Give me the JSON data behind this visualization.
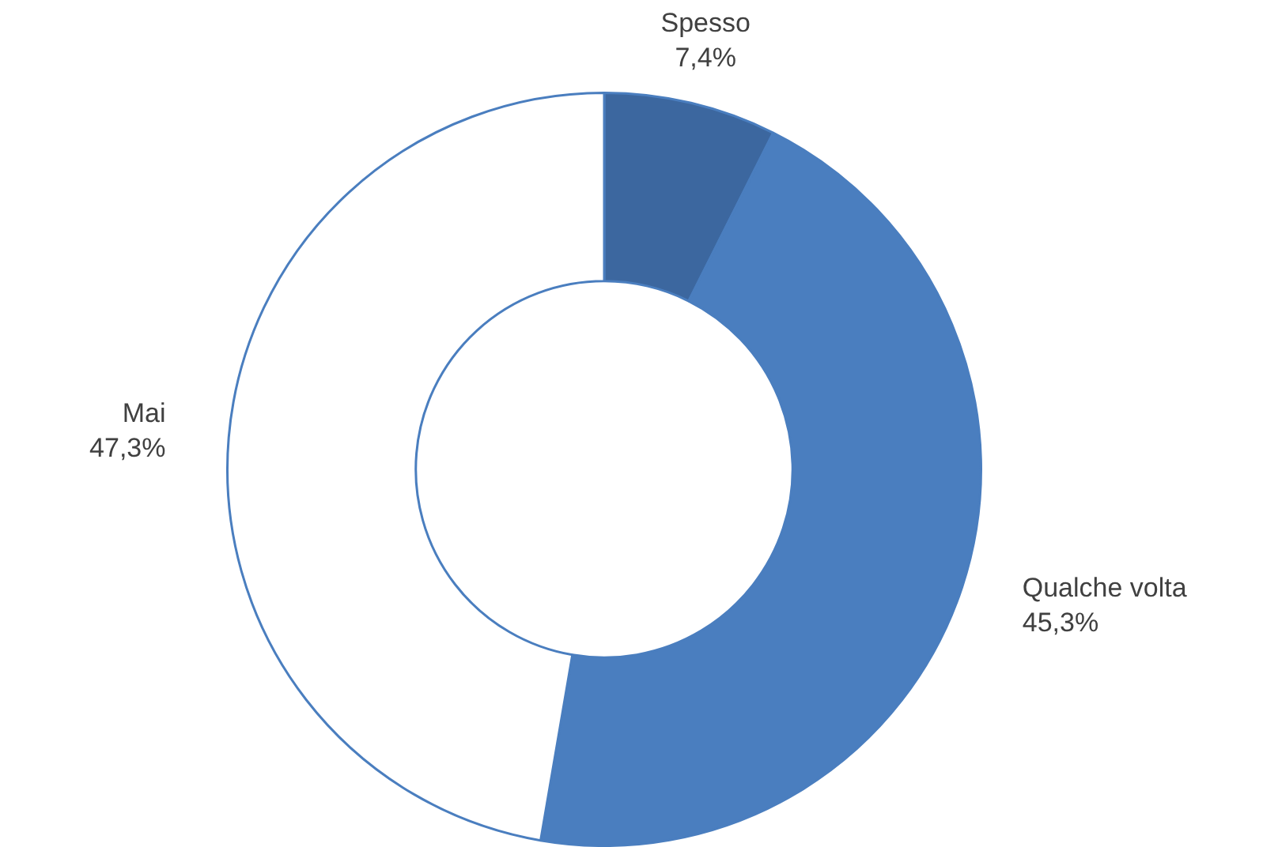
{
  "chart_data": {
    "type": "donut",
    "categories": [
      "Spesso",
      "Qualche volta",
      "Mai"
    ],
    "values": [
      7.4,
      45.3,
      47.3
    ],
    "colors": [
      "#3c679f",
      "#4a7ebf",
      "#ffffff"
    ],
    "value_labels": [
      "7,4%",
      "45,3%",
      "47,3%"
    ]
  }
}
